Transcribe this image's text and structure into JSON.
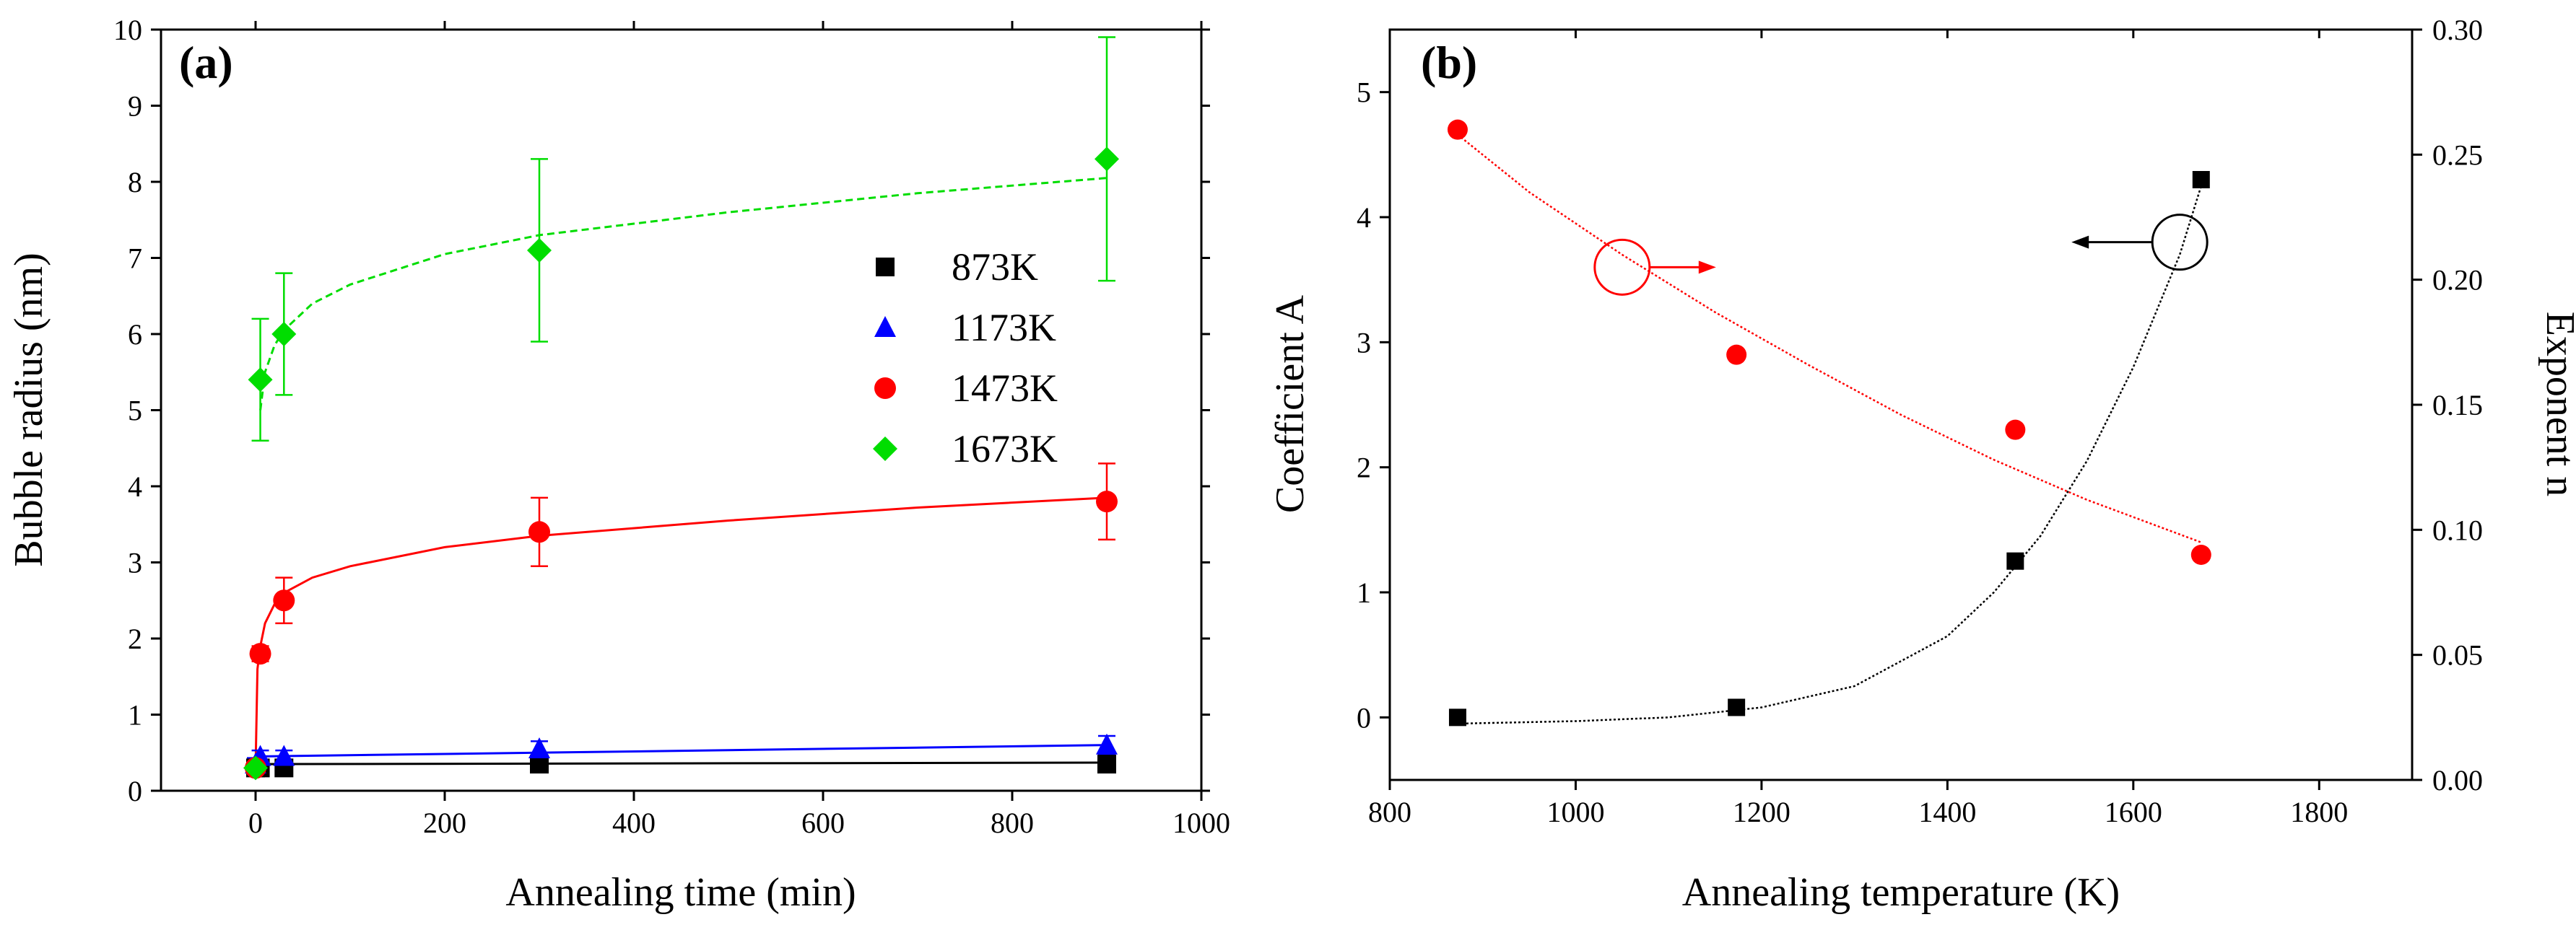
{
  "chart_data": [
    {
      "panel": "(a)",
      "type": "scatter",
      "title": "",
      "xlabel": "Annealing time  (min)",
      "ylabel": "Bubble radius (nm)",
      "xlim": [
        -100,
        1000
      ],
      "ylim": [
        0,
        10
      ],
      "xticks": [
        0,
        200,
        400,
        600,
        800,
        1000
      ],
      "yticks": [
        0,
        1,
        2,
        3,
        4,
        5,
        6,
        7,
        8,
        9,
        10
      ],
      "xtick_labels": [
        "0",
        "200",
        "400",
        "600",
        "800",
        "1000"
      ],
      "ytick_labels": [
        "0",
        "1",
        "2",
        "3",
        "4",
        "5",
        "6",
        "7",
        "8",
        "9",
        "10"
      ],
      "legend_position": "center-right",
      "series": [
        {
          "name": "873K",
          "color": "#000000",
          "marker": "square",
          "x": [
            0,
            5,
            30,
            300,
            900
          ],
          "y": [
            0.3,
            0.3,
            0.3,
            0.35,
            0.35
          ],
          "err": [
            0.1,
            0.1,
            0.1,
            0.1,
            0.1
          ],
          "fit": {
            "x": [
              0,
              900
            ],
            "y": [
              0.35,
              0.37
            ]
          }
        },
        {
          "name": "1173K",
          "color": "#0000ff",
          "marker": "triangle",
          "x": [
            0,
            5,
            30,
            300,
            900
          ],
          "y": [
            0.35,
            0.45,
            0.45,
            0.55,
            0.6
          ],
          "err": [
            0.08,
            0.08,
            0.08,
            0.1,
            0.12
          ],
          "fit": {
            "x": [
              0,
              900
            ],
            "y": [
              0.45,
              0.6
            ]
          }
        },
        {
          "name": "1473K",
          "color": "#ff0000",
          "marker": "circle",
          "x": [
            0,
            5,
            30,
            300,
            900
          ],
          "y": [
            0.3,
            1.8,
            2.5,
            3.4,
            3.8
          ],
          "err": [
            0.1,
            0.1,
            0.3,
            0.45,
            0.5
          ],
          "fit": {
            "x": [
              0,
              2,
              5,
              10,
              20,
              30,
              60,
              100,
              200,
              300,
              500,
              700,
              900
            ],
            "y": [
              0.3,
              1.6,
              1.9,
              2.2,
              2.45,
              2.6,
              2.8,
              2.95,
              3.2,
              3.35,
              3.55,
              3.72,
              3.85
            ]
          }
        },
        {
          "name": "1673K",
          "color": "#00dd00",
          "marker": "diamond",
          "x": [
            0,
            5,
            30,
            300,
            900
          ],
          "y": [
            0.3,
            5.4,
            6.0,
            7.1,
            8.3
          ],
          "err": [
            0.1,
            0.8,
            0.8,
            1.2,
            1.6
          ],
          "fit": {
            "x": [
              5,
              10,
              20,
              30,
              60,
              100,
              200,
              300,
              500,
              700,
              900
            ],
            "y": [
              5.0,
              5.5,
              5.85,
              6.05,
              6.4,
              6.65,
              7.05,
              7.3,
              7.6,
              7.85,
              8.05
            ]
          }
        }
      ]
    },
    {
      "panel": "(b)",
      "type": "scatter",
      "title": "",
      "xlabel": "Annealing temperature (K)",
      "ylabel": "Coefficient A",
      "ylabel_right": "Exponent n",
      "xlim": [
        800,
        1900
      ],
      "ylim": [
        -0.5,
        5.5
      ],
      "ylim_right": [
        0,
        0.3
      ],
      "xticks": [
        800,
        1000,
        1200,
        1400,
        1600,
        1800
      ],
      "yticks": [
        0,
        1,
        2,
        3,
        4,
        5
      ],
      "yticks_right": [
        0,
        0.05,
        0.1,
        0.15,
        0.2,
        0.25,
        0.3
      ],
      "xtick_labels": [
        "800",
        "1000",
        "1200",
        "1400",
        "1600",
        "1800"
      ],
      "ytick_labels": [
        "0",
        "1",
        "2",
        "3",
        "4",
        "5"
      ],
      "ytick_labels_right": [
        "0.00",
        "0.05",
        "0.10",
        "0.15",
        "0.20",
        "0.25",
        "0.30"
      ],
      "series": [
        {
          "name": "Coefficient A",
          "axis": "left",
          "color": "#000000",
          "marker": "square",
          "x": [
            873,
            1173,
            1473,
            1673
          ],
          "y": [
            0.0,
            0.08,
            1.25,
            4.3
          ],
          "fit": {
            "x": [
              873,
              1000,
              1100,
              1200,
              1300,
              1400,
              1450,
              1500,
              1550,
              1600,
              1650,
              1673
            ],
            "y": [
              -0.05,
              -0.03,
              0.0,
              0.08,
              0.25,
              0.65,
              1.0,
              1.45,
              2.05,
              2.8,
              3.7,
              4.25
            ]
          }
        },
        {
          "name": "Exponent n",
          "axis": "right",
          "color": "#ff0000",
          "marker": "circle",
          "x": [
            873,
            1173,
            1473,
            1673
          ],
          "y": [
            0.26,
            0.17,
            0.14,
            0.09
          ],
          "fit": {
            "x": [
              873,
              950,
              1050,
              1150,
              1250,
              1350,
              1450,
              1550,
              1673
            ],
            "y": [
              0.258,
              0.235,
              0.21,
              0.187,
              0.166,
              0.146,
              0.128,
              0.112,
              0.095
            ]
          }
        }
      ],
      "annotations": [
        {
          "type": "circle-arrow",
          "axis": "right",
          "x": 1050,
          "y": 0.205,
          "direction": "right"
        },
        {
          "type": "circle-arrow",
          "axis": "left",
          "x": 1650,
          "y": 3.8,
          "direction": "left"
        }
      ]
    }
  ]
}
